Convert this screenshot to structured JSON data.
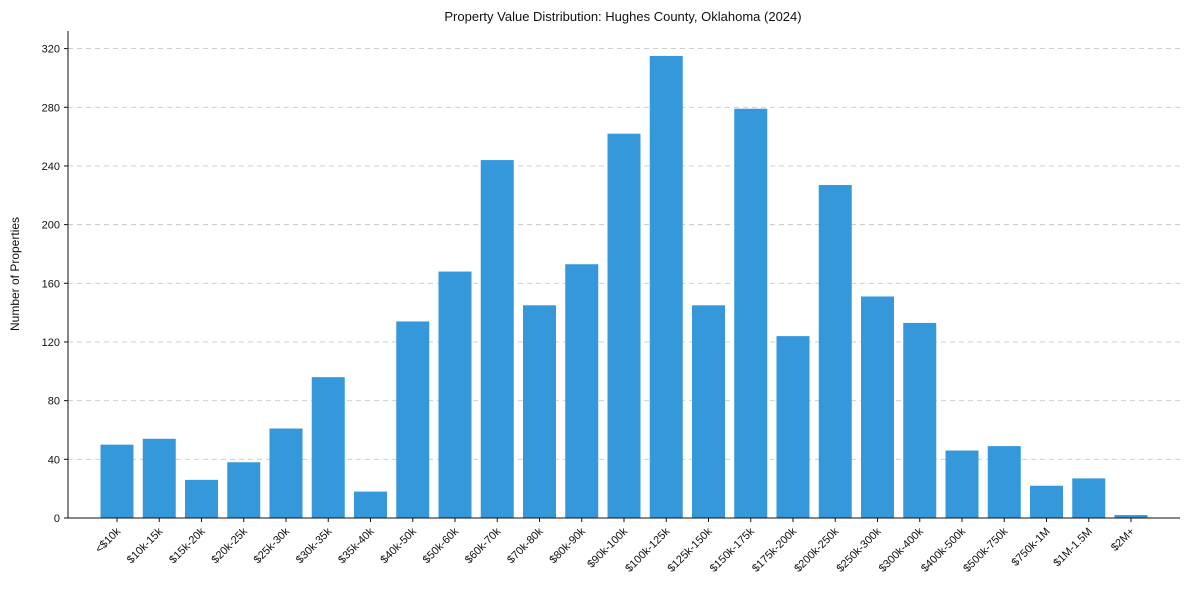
{
  "chart_data": {
    "type": "bar",
    "title": "Property Value Distribution: Hughes County, Oklahoma (2024)",
    "xlabel": "",
    "ylabel": "Number of Properties",
    "categories": [
      "<$10k",
      "$10k-15k",
      "$15k-20k",
      "$20k-25k",
      "$25k-30k",
      "$30k-35k",
      "$35k-40k",
      "$40k-50k",
      "$50k-60k",
      "$60k-70k",
      "$70k-80k",
      "$80k-90k",
      "$90k-100k",
      "$100k-125k",
      "$125k-150k",
      "$150k-175k",
      "$175k-200k",
      "$200k-250k",
      "$250k-300k",
      "$300k-400k",
      "$400k-500k",
      "$500k-750k",
      "$750k-1M",
      "$1M-1.5M",
      "$2M+"
    ],
    "values": [
      50,
      54,
      26,
      38,
      61,
      96,
      18,
      134,
      168,
      244,
      145,
      173,
      262,
      315,
      145,
      279,
      124,
      227,
      151,
      133,
      46,
      49,
      22,
      27,
      2
    ],
    "ylim": [
      0,
      332
    ],
    "yticks": [
      0,
      40,
      80,
      120,
      160,
      200,
      240,
      280,
      320
    ],
    "grid": "y",
    "bar_color": "#3498db"
  }
}
